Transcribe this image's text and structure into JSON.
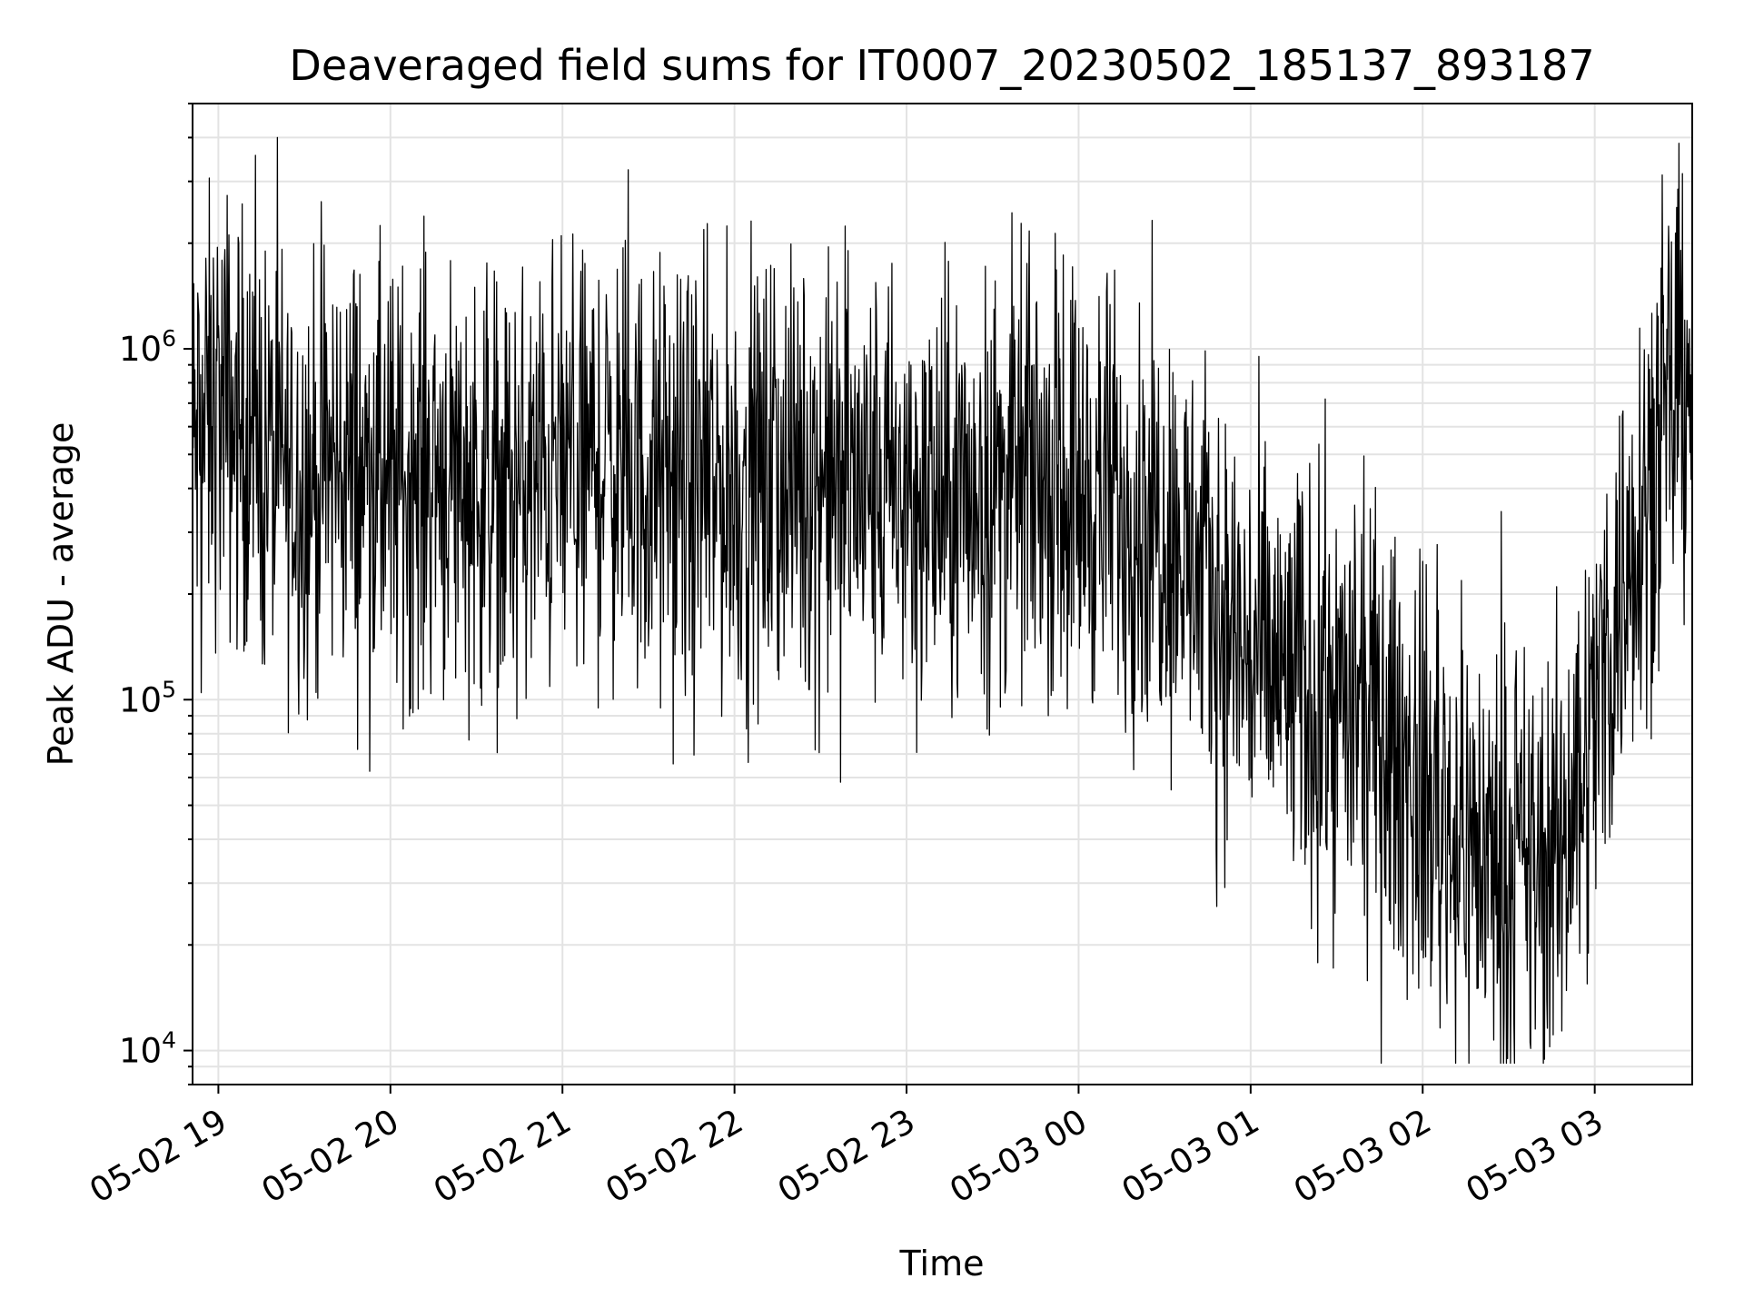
{
  "chart_data": {
    "type": "line",
    "title": "Deaveraged field sums for IT0007_20230502_185137_893187",
    "xlabel": "Time",
    "ylabel": "Peak ADU - average",
    "y_scale": "log",
    "ylim": [
      8000,
      5000000
    ],
    "xlim": [
      "2023-05-02 18:51",
      "2023-05-03 03:34"
    ],
    "grid": true,
    "line_color": "#000000",
    "x_ticks": [
      {
        "t": "2023-05-02 19:00",
        "label": "05-02 19"
      },
      {
        "t": "2023-05-02 20:00",
        "label": "05-02 20"
      },
      {
        "t": "2023-05-02 21:00",
        "label": "05-02 21"
      },
      {
        "t": "2023-05-02 22:00",
        "label": "05-02 22"
      },
      {
        "t": "2023-05-02 23:00",
        "label": "05-02 23"
      },
      {
        "t": "2023-05-03 00:00",
        "label": "05-03 00"
      },
      {
        "t": "2023-05-03 01:00",
        "label": "05-03 01"
      },
      {
        "t": "2023-05-03 02:00",
        "label": "05-03 02"
      },
      {
        "t": "2023-05-03 03:00",
        "label": "05-03 03"
      }
    ],
    "y_ticks": [
      {
        "value": 10000,
        "base": "10",
        "exp": "4"
      },
      {
        "value": 100000,
        "base": "10",
        "exp": "5"
      },
      {
        "value": 1000000,
        "base": "10",
        "exp": "6"
      }
    ],
    "series": [
      {
        "values_summary": "Dense noisy signal; ~4e5 median through 05-03 00:30, dipping to ~3e4 near 05-03 02:30, recovering to ~1e6 by 05-03 03:30",
        "points": [
          [
            "2023-05-02 18:51",
            500000
          ],
          [
            "2023-05-02 19:00",
            700000
          ],
          [
            "2023-05-02 19:15",
            500000
          ],
          [
            "2023-05-02 19:30",
            420000
          ],
          [
            "2023-05-02 19:45",
            480000
          ],
          [
            "2023-05-02 20:00",
            400000
          ],
          [
            "2023-05-02 20:15",
            470000
          ],
          [
            "2023-05-02 20:30",
            420000
          ],
          [
            "2023-05-02 20:45",
            380000
          ],
          [
            "2023-05-02 21:00",
            460000
          ],
          [
            "2023-05-02 21:15",
            480000
          ],
          [
            "2023-05-02 21:30",
            420000
          ],
          [
            "2023-05-02 21:45",
            380000
          ],
          [
            "2023-05-02 22:00",
            400000
          ],
          [
            "2023-05-02 22:15",
            420000
          ],
          [
            "2023-05-02 22:30",
            430000
          ],
          [
            "2023-05-02 22:45",
            400000
          ],
          [
            "2023-05-02 23:00",
            380000
          ],
          [
            "2023-05-02 23:15",
            360000
          ],
          [
            "2023-05-02 23:30",
            420000
          ],
          [
            "2023-05-02 23:45",
            450000
          ],
          [
            "2023-05-03 00:00",
            400000
          ],
          [
            "2023-05-03 00:15",
            360000
          ],
          [
            "2023-05-03 00:30",
            330000
          ],
          [
            "2023-05-03 00:45",
            200000
          ],
          [
            "2023-05-03 01:00",
            130000
          ],
          [
            "2023-05-03 01:15",
            110000
          ],
          [
            "2023-05-03 01:30",
            100000
          ],
          [
            "2023-05-03 01:45",
            80000
          ],
          [
            "2023-05-03 02:00",
            55000
          ],
          [
            "2023-05-03 02:15",
            40000
          ],
          [
            "2023-05-03 02:30",
            32000
          ],
          [
            "2023-05-03 02:45",
            33000
          ],
          [
            "2023-05-03 03:00",
            90000
          ],
          [
            "2023-05-03 03:15",
            350000
          ],
          [
            "2023-05-03 03:34",
            1000000
          ]
        ]
      }
    ]
  }
}
